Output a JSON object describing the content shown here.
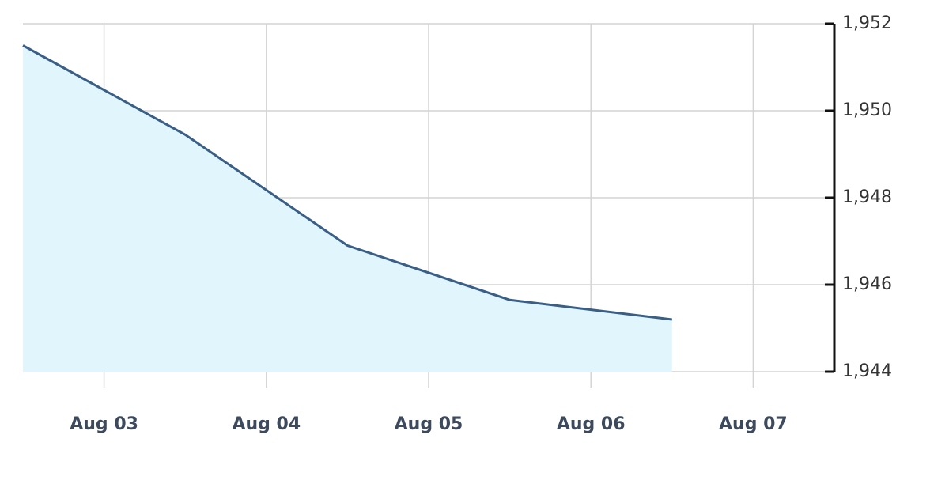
{
  "chart_data": {
    "type": "area",
    "x": [
      2.5,
      3.5,
      4.5,
      5.5,
      6.5
    ],
    "series": [
      {
        "color": "#3a5f86",
        "fill": "#e1f5fc",
        "values": [
          1951.5,
          1949.45,
          1946.9,
          1945.65,
          1945.2
        ]
      }
    ],
    "xlim": [
      2.5,
      7.5
    ],
    "xticks": [
      {
        "value": 3,
        "label": "Aug 03"
      },
      {
        "value": 4,
        "label": "Aug 04"
      },
      {
        "value": 5,
        "label": "Aug 05"
      },
      {
        "value": 6,
        "label": "Aug 06"
      },
      {
        "value": 7,
        "label": "Aug 07"
      }
    ],
    "ylim": [
      1944,
      1952
    ],
    "yticks": [
      {
        "value": 1944,
        "label": "1,944"
      },
      {
        "value": 1946,
        "label": "1,946"
      },
      {
        "value": 1948,
        "label": "1,948"
      },
      {
        "value": 1950,
        "label": "1,950"
      },
      {
        "value": 1952,
        "label": "1,952"
      }
    ],
    "grid": true,
    "y_axis_side": "right"
  }
}
